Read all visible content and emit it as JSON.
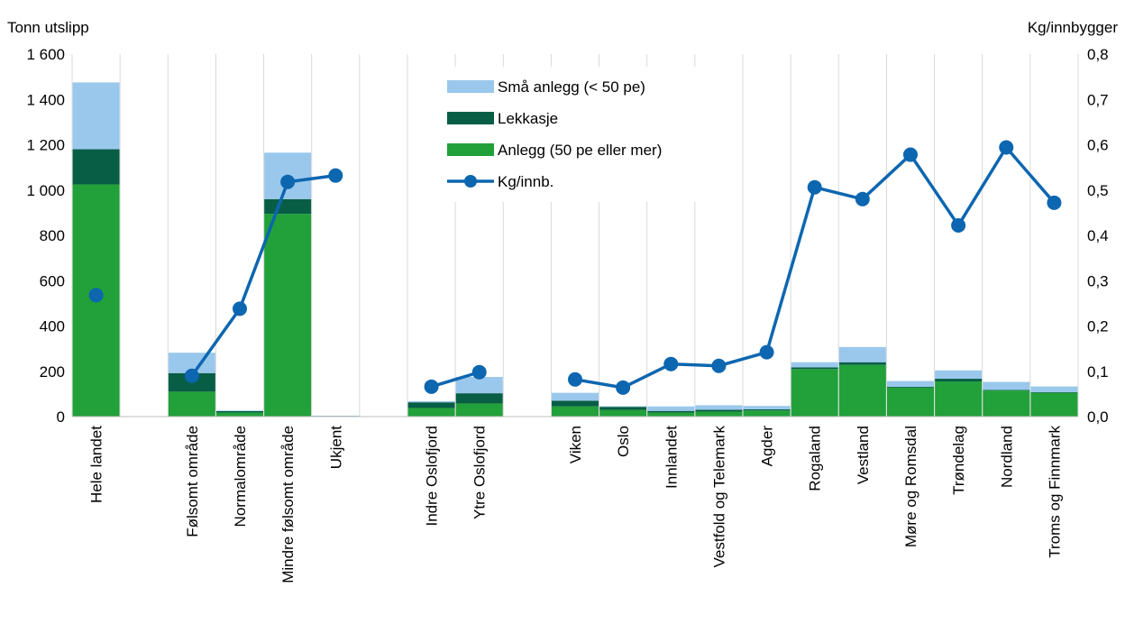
{
  "chart_data": {
    "type": "bar",
    "stacked": true,
    "left_axis_label": "Tonn utslipp",
    "right_axis_label": "Kg/innbygger",
    "y_left": {
      "min": 0,
      "max": 1600,
      "ticks": [
        0,
        200,
        400,
        600,
        800,
        1000,
        1200,
        1400,
        1600
      ],
      "tick_labels": [
        "0",
        "200",
        "400",
        "600",
        "800",
        "1 000",
        "1 200",
        "1 400",
        "1 600"
      ]
    },
    "y_right": {
      "min": 0,
      "max": 0.8,
      "ticks": [
        0,
        0.1,
        0.2,
        0.3,
        0.4,
        0.5,
        0.6,
        0.7,
        0.8
      ],
      "tick_labels": [
        "0,0",
        "0,1",
        "0,2",
        "0,3",
        "0,4",
        "0,5",
        "0,6",
        "0,7",
        "0,8"
      ]
    },
    "categories": [
      "Hele landet",
      "",
      "Følsomt område",
      "Normalområde",
      "Mindre følsomt område",
      "Ukjent",
      "",
      "Indre Oslofjord",
      "Ytre Oslofjord",
      "",
      "Viken",
      "Oslo",
      "Innlandet",
      "Vestfold og Telemark",
      "Agder",
      "Rogaland",
      "Vestland",
      "Møre og Romsdal",
      "Trøndelag",
      "Nordland",
      "Troms og Finnmark"
    ],
    "series": [
      {
        "name": "Anlegg (50 pe eller mer)",
        "color": "#22a03a",
        "axis": "left",
        "values": [
          1025,
          null,
          110,
          18,
          895,
          2,
          null,
          38,
          58,
          null,
          45,
          30,
          18,
          22,
          27,
          210,
          228,
          128,
          155,
          115,
          105
        ]
      },
      {
        "name": "Lekkasje",
        "color": "#075e45",
        "axis": "left",
        "values": [
          155,
          null,
          82,
          6,
          65,
          1,
          null,
          25,
          45,
          null,
          25,
          13,
          7,
          8,
          5,
          7,
          12,
          4,
          12,
          3,
          3
        ]
      },
      {
        "name": "Små anlegg  (< 50 pe)",
        "color": "#9ac8ec",
        "axis": "left",
        "values": [
          295,
          null,
          90,
          3,
          205,
          1,
          null,
          5,
          72,
          null,
          35,
          3,
          20,
          20,
          15,
          23,
          67,
          25,
          37,
          35,
          25
        ]
      },
      {
        "name": "Kg/innb.",
        "color": "#0d66b0",
        "axis": "right",
        "type": "line",
        "values": [
          0.268,
          null,
          0.09,
          0.238,
          0.518,
          0.532,
          null,
          0.066,
          0.098,
          null,
          0.082,
          0.064,
          0.116,
          0.112,
          0.142,
          0.506,
          0.48,
          0.578,
          0.422,
          0.594,
          0.472
        ]
      }
    ],
    "legend_order": [
      "Små anlegg  (< 50 pe)",
      "Lekkasje",
      "Anlegg (50 pe eller mer)",
      "Kg/innb."
    ],
    "legend_position": "top-center",
    "grid": "vertical"
  }
}
